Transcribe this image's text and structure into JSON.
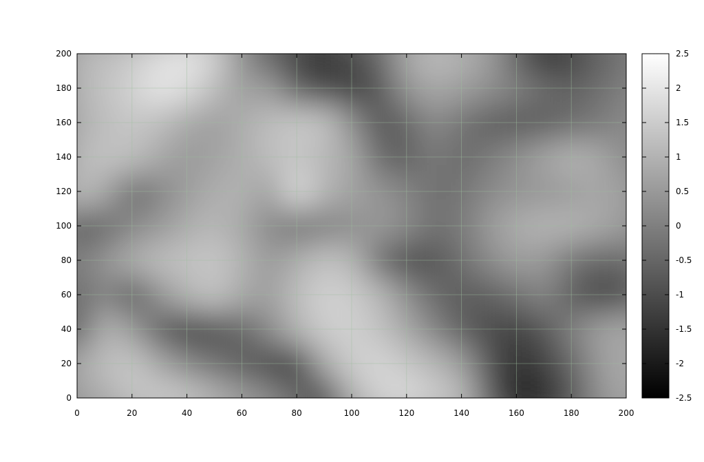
{
  "chart_data": {
    "type": "heatmap",
    "title": "",
    "xlabel": "",
    "ylabel": "",
    "xlim": [
      0,
      200
    ],
    "ylim": [
      0,
      200
    ],
    "x_ticks": [
      "0",
      "20",
      "40",
      "60",
      "80",
      "100",
      "120",
      "140",
      "160",
      "180",
      "200"
    ],
    "y_ticks": [
      "0",
      "20",
      "40",
      "60",
      "80",
      "100",
      "120",
      "140",
      "160",
      "180",
      "200"
    ],
    "grid": true,
    "colorbar": {
      "range": [
        -2.5,
        2.5
      ],
      "ticks": [
        "-2.5",
        "-2",
        "-1.5",
        "-1",
        "-0.5",
        "0",
        "0.5",
        "1",
        "1.5",
        "2",
        "2.5"
      ],
      "low_color": "#000000",
      "high_color": "#ffffff"
    },
    "colors": {
      "grid": "#9fbf9f",
      "frame": "#000000"
    },
    "field_rows_note": "values sampled on a 11x21 grid: rows y=0..200 step 20, cols x=0..200 step 10",
    "field": [
      [
        0.6,
        0.9,
        1.3,
        1.5,
        1.4,
        1.0,
        0.6,
        0.2,
        -0.5,
        -1.2,
        0.9,
        1.6,
        1.8,
        1.5,
        1.2,
        -0.6,
        -1.9,
        -1.7,
        -0.9,
        0.3,
        0.8
      ],
      [
        0.8,
        1.2,
        1.4,
        0.8,
        0.2,
        -0.2,
        -0.6,
        -1.0,
        -1.3,
        0.8,
        1.5,
        1.7,
        1.4,
        1.1,
        0.6,
        -0.9,
        -1.6,
        -1.2,
        -0.5,
        0.5,
        0.9
      ],
      [
        -0.7,
        1.0,
        0.6,
        -0.6,
        -1.2,
        -0.9,
        -0.5,
        0.2,
        1.0,
        1.5,
        1.6,
        1.3,
        0.8,
        0.1,
        -0.6,
        -1.0,
        -1.2,
        -0.8,
        0.0,
        0.6,
        0.8
      ],
      [
        -0.5,
        0.2,
        -0.8,
        0.4,
        1.0,
        1.3,
        0.8,
        0.6,
        1.2,
        1.6,
        1.5,
        1.1,
        0.3,
        -0.4,
        -0.7,
        -0.6,
        -0.3,
        0.1,
        -0.6,
        -1.1,
        -0.9
      ],
      [
        -0.1,
        0.4,
        0.9,
        1.2,
        1.3,
        1.4,
        1.0,
        0.5,
        0.9,
        1.3,
        1.1,
        -0.3,
        -1.0,
        -0.8,
        -0.3,
        0.2,
        0.6,
        0.5,
        -0.2,
        -0.5,
        -0.4
      ],
      [
        -0.6,
        -0.4,
        0.2,
        0.5,
        0.9,
        1.1,
        0.8,
        0.2,
        -0.2,
        0.0,
        0.3,
        0.5,
        0.2,
        -0.3,
        -0.1,
        0.5,
        0.9,
        1.0,
        1.0,
        0.8,
        0.5
      ],
      [
        1.2,
        0.8,
        -0.4,
        0.1,
        0.6,
        0.9,
        1.0,
        0.6,
        1.8,
        1.0,
        0.7,
        0.4,
        0.1,
        -0.3,
        -0.2,
        0.2,
        0.4,
        0.5,
        0.6,
        0.8,
        0.6
      ],
      [
        1.1,
        1.3,
        1.2,
        0.8,
        0.5,
        0.7,
        0.9,
        1.2,
        1.4,
        1.1,
        0.8,
        -0.4,
        -0.6,
        -0.1,
        -0.4,
        -0.1,
        0.3,
        0.7,
        1.0,
        0.8,
        0.2
      ],
      [
        0.9,
        1.2,
        1.4,
        1.2,
        0.8,
        0.6,
        0.9,
        1.2,
        1.4,
        1.3,
        0.3,
        -0.8,
        -0.5,
        0.2,
        -0.2,
        -0.6,
        -0.7,
        -0.6,
        -0.3,
        -0.1,
        0.2
      ],
      [
        1.0,
        1.3,
        1.6,
        2.0,
        1.8,
        1.2,
        0.6,
        0.6,
        -0.6,
        -1.0,
        -1.2,
        -0.8,
        0.4,
        0.8,
        0.6,
        0.3,
        0.0,
        -0.4,
        -0.6,
        -0.3,
        0.0
      ],
      [
        1.0,
        1.2,
        1.4,
        1.8,
        2.0,
        1.6,
        0.3,
        -0.6,
        -1.2,
        -1.6,
        -1.0,
        -0.5,
        0.8,
        1.2,
        1.0,
        0.6,
        -0.6,
        -1.6,
        -1.2,
        -0.6,
        -0.2
      ]
    ]
  }
}
